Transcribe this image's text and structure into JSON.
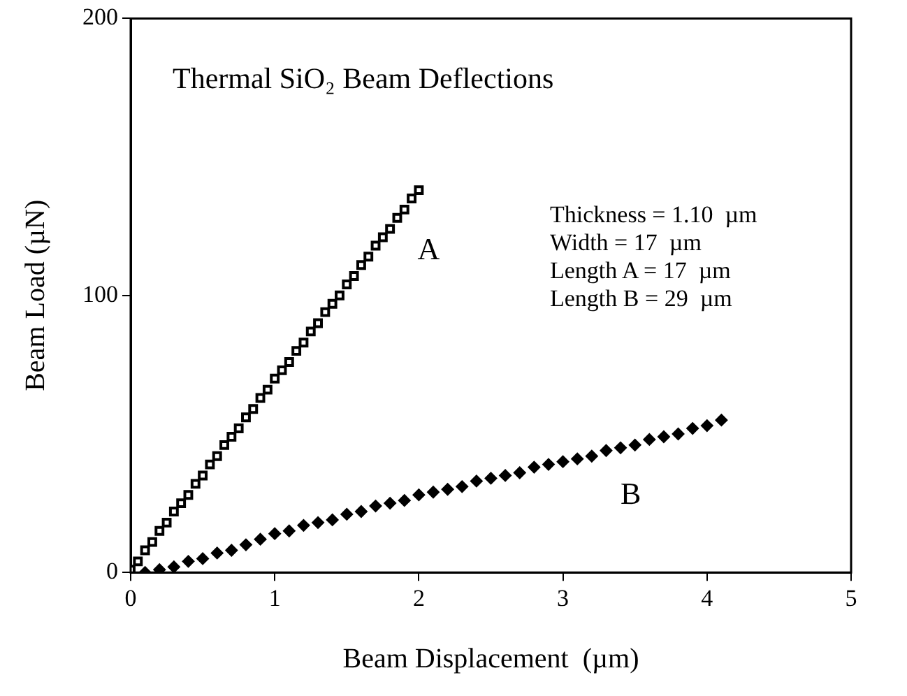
{
  "chart_data": {
    "type": "scatter",
    "title": "Thermal SiO₂ Beam Deflections",
    "xlabel": "Beam Displacement  (µm)",
    "ylabel": "Beam Load (µN)",
    "annotations": [
      "Thickness = 1.10  µm",
      "Width = 17  µm",
      "Length A = 17  µm",
      "Length B = 29  µm"
    ],
    "xlim": [
      0,
      5
    ],
    "xticks": [
      0,
      1,
      2,
      3,
      4,
      5
    ],
    "ylim": [
      0,
      200
    ],
    "yticks": [
      0,
      100,
      200
    ],
    "grid": false,
    "legend": false,
    "series": [
      {
        "name": "A",
        "color": "#000000",
        "marker": "square",
        "x": [
          0,
          0.05,
          0.1,
          0.15,
          0.2,
          0.25,
          0.3,
          0.35,
          0.4,
          0.45,
          0.5,
          0.55,
          0.6,
          0.65,
          0.7,
          0.75,
          0.8,
          0.85,
          0.9,
          0.95,
          1.0,
          1.05,
          1.1,
          1.15,
          1.2,
          1.25,
          1.3,
          1.35,
          1.4,
          1.45,
          1.5,
          1.55,
          1.6,
          1.65,
          1.7,
          1.75,
          1.8,
          1.85,
          1.9,
          1.95,
          2.0
        ],
        "values": [
          1,
          4,
          8,
          11,
          15,
          18,
          22,
          25,
          28,
          32,
          35,
          39,
          42,
          46,
          49,
          52,
          56,
          59,
          63,
          66,
          70,
          73,
          76,
          80,
          83,
          87,
          90,
          94,
          97,
          100,
          104,
          107,
          111,
          114,
          118,
          121,
          124,
          128,
          131,
          135,
          138
        ]
      },
      {
        "name": "B",
        "color": "#000000",
        "marker": "diamond",
        "x": [
          0.1,
          0.2,
          0.3,
          0.4,
          0.5,
          0.6,
          0.7,
          0.8,
          0.9,
          1.0,
          1.1,
          1.2,
          1.3,
          1.4,
          1.5,
          1.6,
          1.7,
          1.8,
          1.9,
          2.0,
          2.1,
          2.2,
          2.3,
          2.4,
          2.5,
          2.6,
          2.7,
          2.8,
          2.9,
          3.0,
          3.1,
          3.2,
          3.3,
          3.4,
          3.5,
          3.6,
          3.7,
          3.8,
          3.9,
          4.0,
          4.1
        ],
        "values": [
          0,
          1,
          2,
          4,
          5,
          7,
          8,
          10,
          12,
          14,
          15,
          17,
          18,
          19,
          21,
          22,
          24,
          25,
          26,
          28,
          29,
          30,
          31,
          33,
          34,
          35,
          36,
          38,
          39,
          40,
          41,
          42,
          44,
          45,
          46,
          48,
          49,
          50,
          52,
          53,
          55
        ]
      }
    ]
  }
}
